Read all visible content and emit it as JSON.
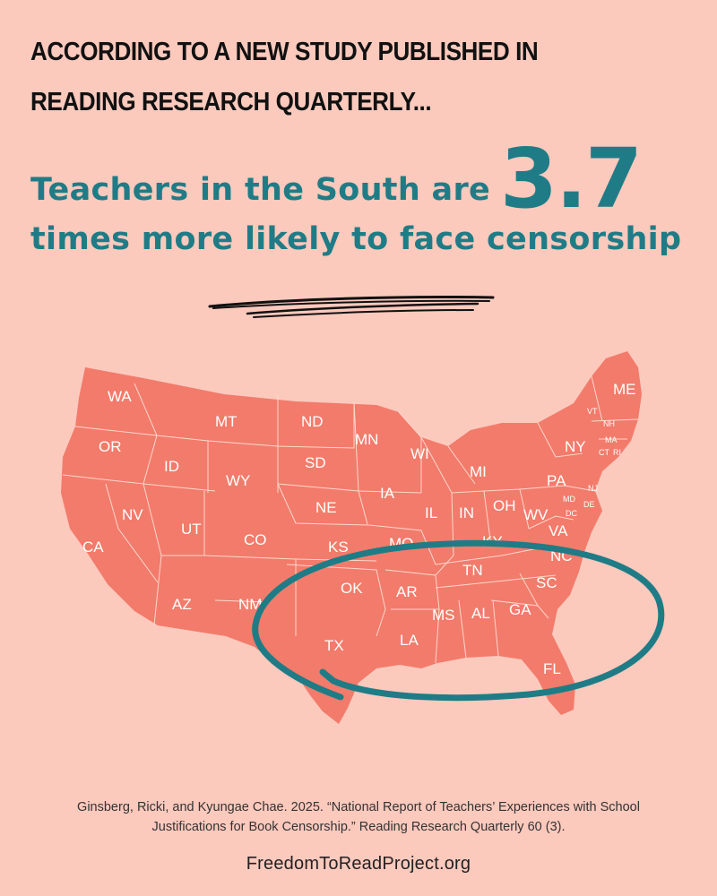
{
  "header": {
    "line1": "ACCORDING TO A NEW STUDY PUBLISHED IN",
    "line2": "READING RESEARCH QUARTERLY..."
  },
  "stat": {
    "line1": "Teachers in the South are",
    "number": "3.7",
    "line2": "times more likely to face censorship"
  },
  "colors": {
    "background": "#fcc9bd",
    "map_fill": "#f27b6b",
    "accent": "#1f7c86",
    "text": "#111111"
  },
  "map": {
    "states": [
      "WA",
      "OR",
      "CA",
      "ID",
      "NV",
      "MT",
      "WY",
      "UT",
      "AZ",
      "CO",
      "NM",
      "ND",
      "SD",
      "NE",
      "KS",
      "OK",
      "TX",
      "MN",
      "IA",
      "MO",
      "AR",
      "LA",
      "WI",
      "IL",
      "MI",
      "IN",
      "OH",
      "KY",
      "TN",
      "MS",
      "AL",
      "GA",
      "SC",
      "NC",
      "FL",
      "WV",
      "VA",
      "PA",
      "NY",
      "ME",
      "VT",
      "NH",
      "MA",
      "CT",
      "RI",
      "NJ",
      "DE",
      "MD",
      "DC"
    ]
  },
  "citation": {
    "line1": "Ginsberg, Ricki, and Kyungae Chae. 2025. “National Report of Teachers’ Experiences with School",
    "line2": "Justifications for Book Censorship.” Reading Research Quarterly 60 (3)."
  },
  "footer": {
    "site": "FreedomToReadProject.org"
  }
}
